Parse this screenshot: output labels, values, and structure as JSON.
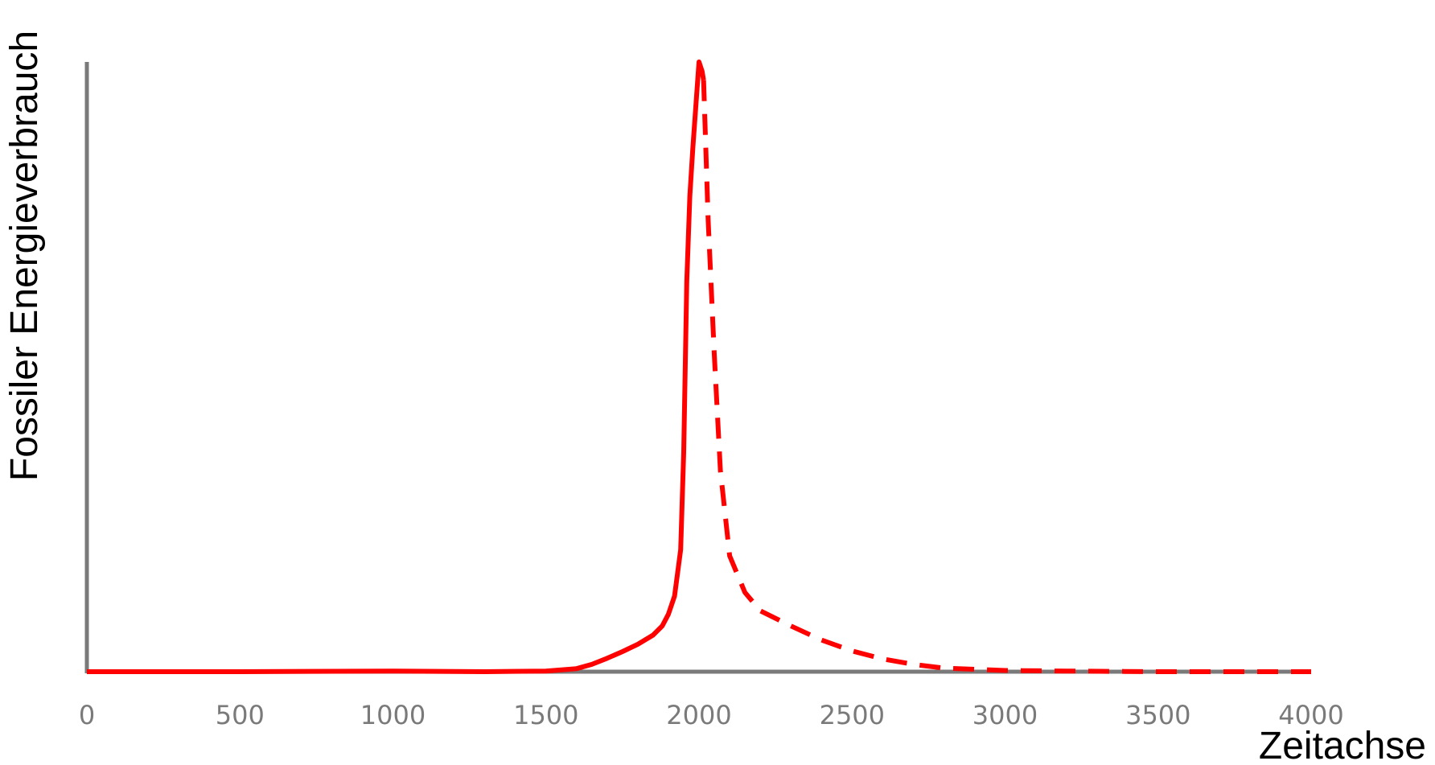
{
  "chart_data": {
    "type": "line",
    "title": "",
    "xlabel": "Zeitachse",
    "ylabel": "Fossiler Energieverbrauch",
    "xlim": [
      0,
      4000
    ],
    "ylim": [
      0,
      1
    ],
    "x_ticks": [
      "0",
      "500",
      "1000",
      "1500",
      "2000",
      "2500",
      "3000",
      "3500",
      "4000"
    ],
    "y_ticks": [],
    "grid": false,
    "legend": "none",
    "colors": {
      "line": "#ff0000",
      "axis": "#7a7a7a"
    },
    "series": [
      {
        "style": "solid",
        "x": [
          0,
          500,
          1000,
          1300,
          1500,
          1600,
          1650,
          1700,
          1750,
          1800,
          1850,
          1880,
          1900,
          1920,
          1940,
          1950,
          1960,
          1970,
          1980,
          1990,
          2000,
          2010,
          2015
        ],
        "y": [
          0,
          0,
          0.001,
          0,
          0.001,
          0.005,
          0.012,
          0.022,
          0.033,
          0.045,
          0.06,
          0.075,
          0.094,
          0.124,
          0.2,
          0.36,
          0.64,
          0.78,
          0.86,
          0.93,
          1.0,
          0.985,
          0.97
        ]
      },
      {
        "style": "dashed",
        "x": [
          2015,
          2030,
          2050,
          2070,
          2100,
          2150,
          2200,
          2300,
          2400,
          2500,
          2600,
          2700,
          2800,
          3000,
          3200,
          3500,
          4000
        ],
        "y": [
          0.97,
          0.74,
          0.52,
          0.33,
          0.19,
          0.13,
          0.1,
          0.075,
          0.052,
          0.034,
          0.021,
          0.012,
          0.006,
          0.002,
          0.001,
          0,
          0
        ]
      }
    ]
  }
}
